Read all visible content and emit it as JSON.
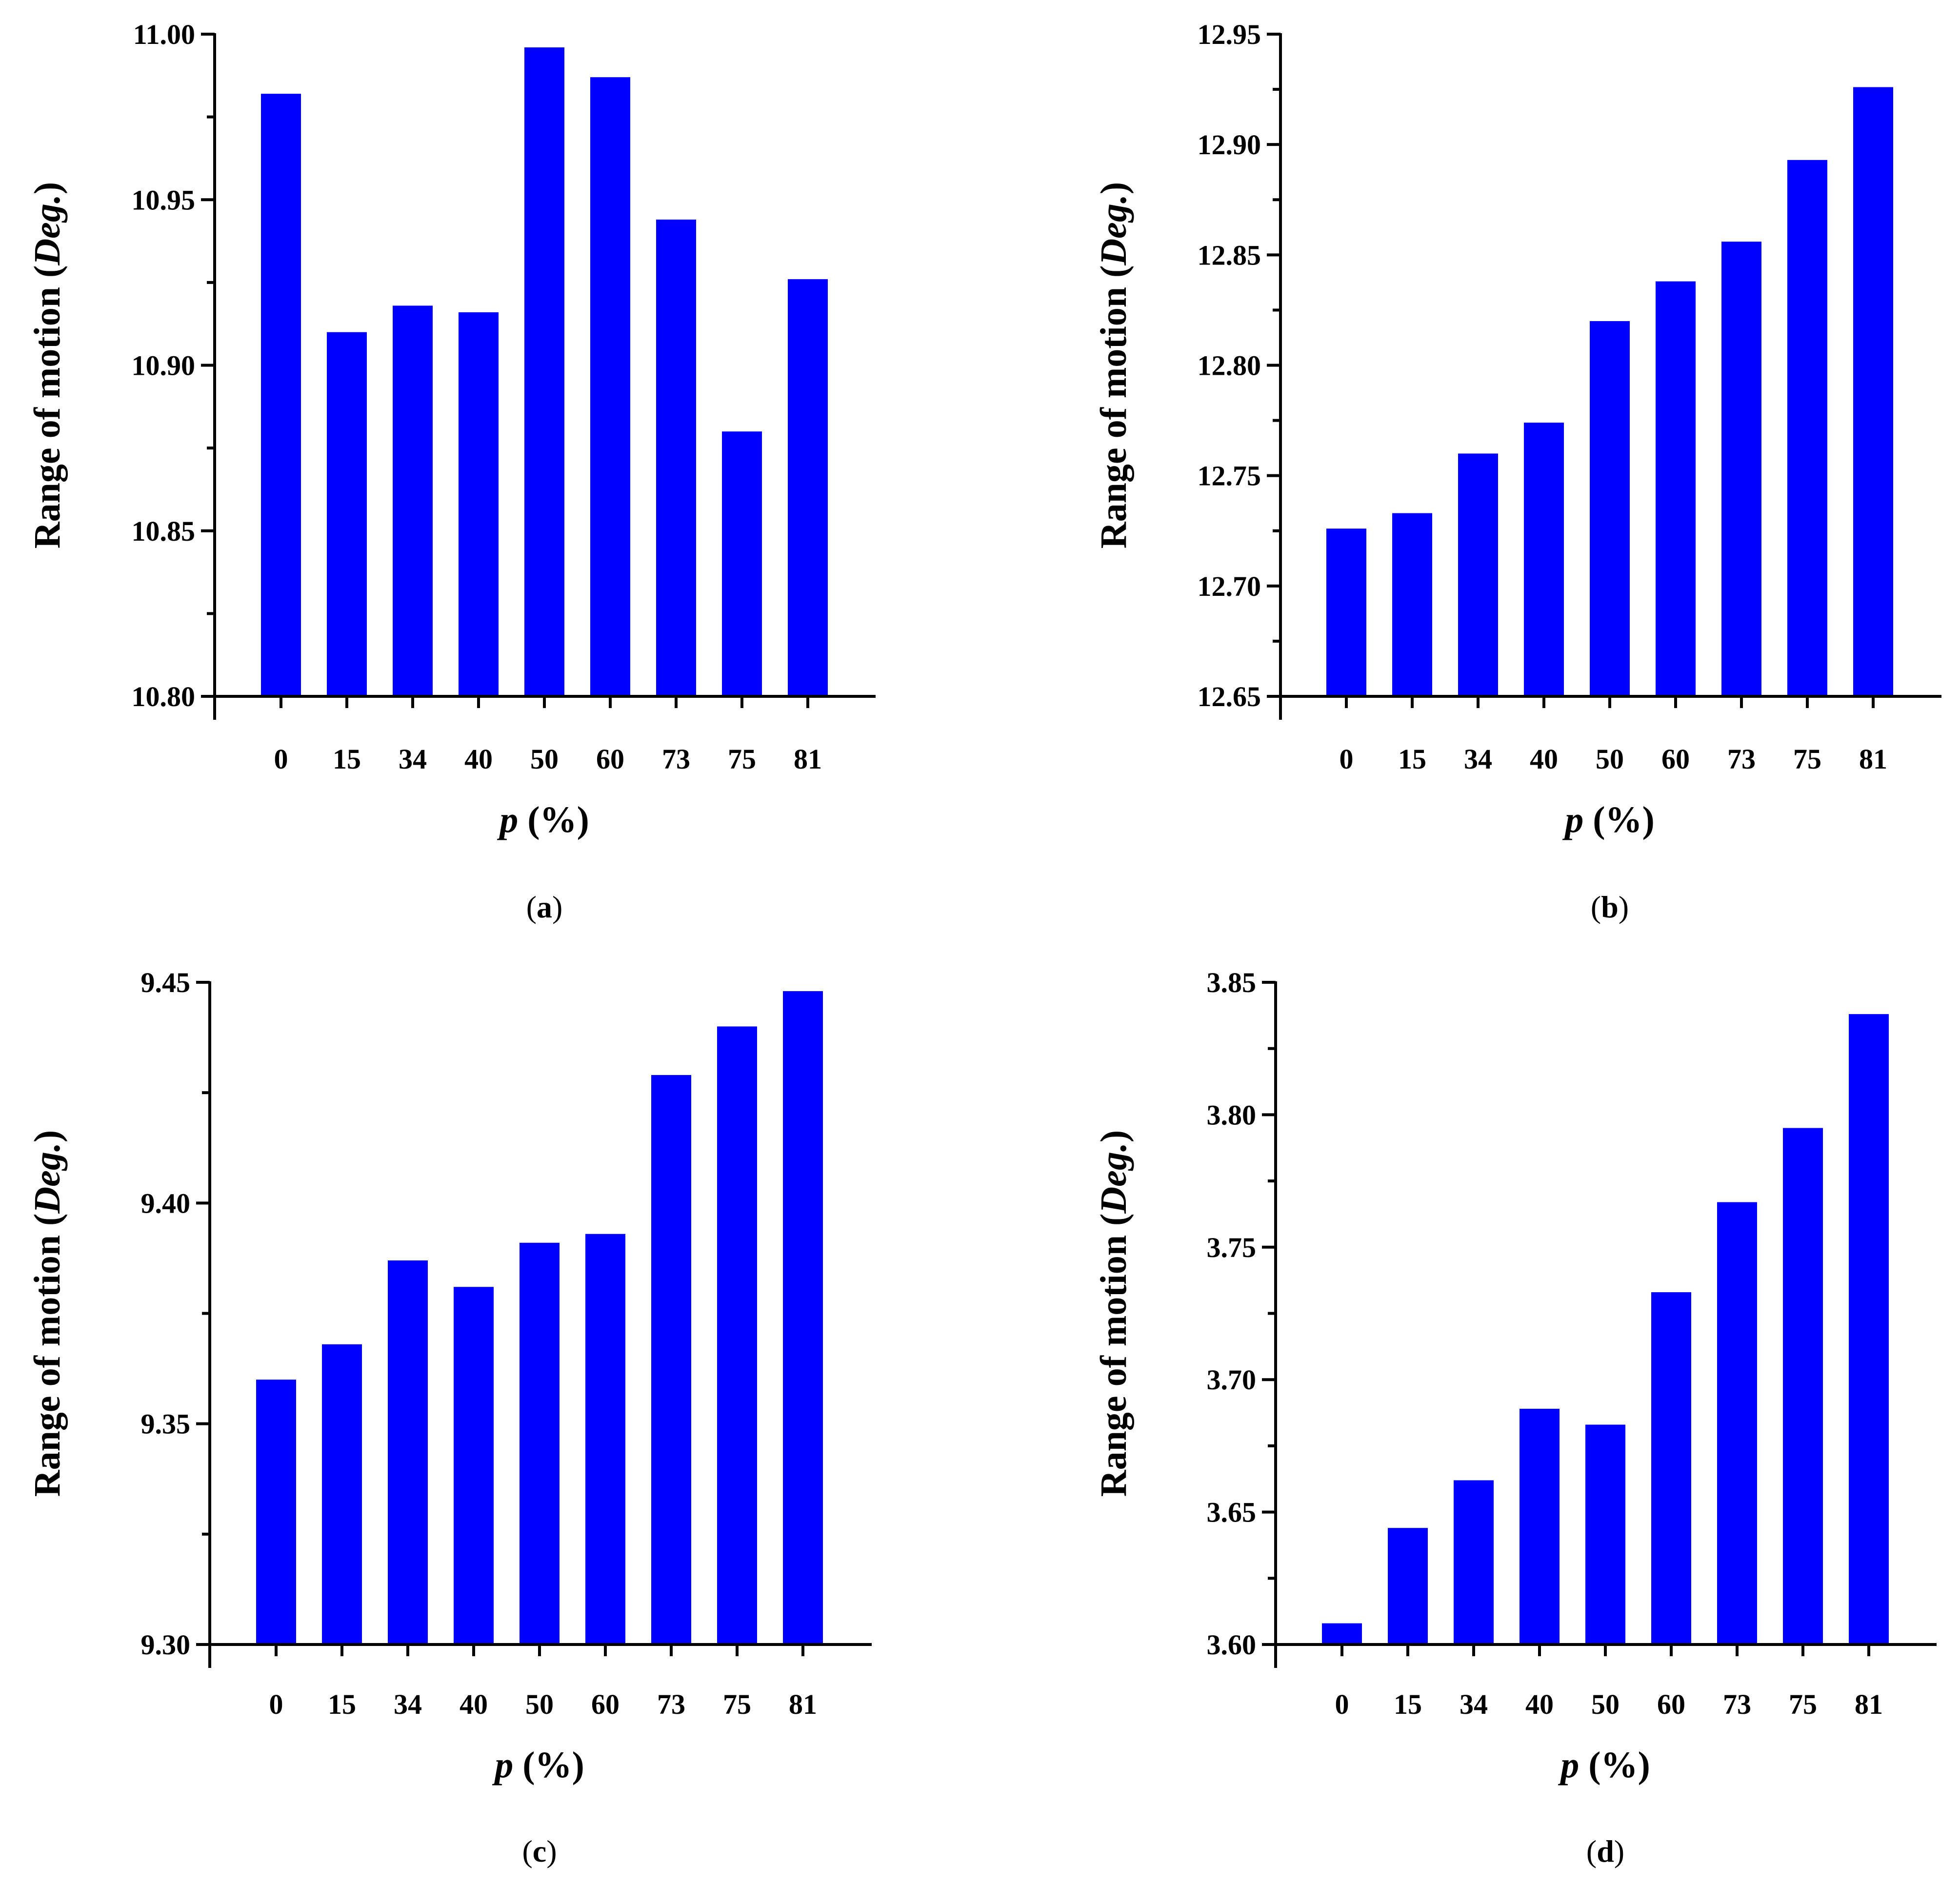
{
  "chart_data": [
    {
      "type": "bar",
      "panel": "(a)",
      "categories": [
        "0",
        "15",
        "34",
        "40",
        "50",
        "60",
        "73",
        "75",
        "81"
      ],
      "values": [
        10.982,
        10.91,
        10.918,
        10.916,
        10.996,
        10.987,
        10.944,
        10.88,
        10.926
      ],
      "ylim": [
        10.8,
        11.0
      ],
      "yticks": [
        "10.80",
        "10.85",
        "10.90",
        "10.95",
        "11.00"
      ],
      "ylabel_main": "Range of motion (",
      "ylabel_italic": "Deg.",
      "ylabel_end": ")",
      "xlabel_italic": "p",
      "xlabel_rest": " (%)",
      "caption": "(a)",
      "color": "#0000ff"
    },
    {
      "type": "bar",
      "panel": "(b)",
      "categories": [
        "0",
        "15",
        "34",
        "40",
        "50",
        "60",
        "73",
        "75",
        "81"
      ],
      "values": [
        12.726,
        12.733,
        12.76,
        12.774,
        12.82,
        12.838,
        12.856,
        12.893,
        12.926
      ],
      "ylim": [
        12.65,
        12.95
      ],
      "yticks": [
        "12.65",
        "12.70",
        "12.75",
        "12.80",
        "12.85",
        "12.90",
        "12.95"
      ],
      "ylabel_main": "Range of motion (",
      "ylabel_italic": "Deg.",
      "ylabel_end": ")",
      "xlabel_italic": "p",
      "xlabel_rest": " (%)",
      "caption": "(b)",
      "color": "#0000ff"
    },
    {
      "type": "bar",
      "panel": "(c)",
      "categories": [
        "0",
        "15",
        "34",
        "40",
        "50",
        "60",
        "73",
        "75",
        "81"
      ],
      "values": [
        9.36,
        9.368,
        9.387,
        9.381,
        9.391,
        9.393,
        9.429,
        9.44,
        9.448
      ],
      "ylim": [
        9.3,
        9.45
      ],
      "yticks": [
        "9.30",
        "9.35",
        "9.40",
        "9.45"
      ],
      "ylabel_main": "Range of motion (",
      "ylabel_italic": "Deg.",
      "ylabel_end": ")",
      "xlabel_italic": "p",
      "xlabel_rest": " (%)",
      "caption": "(c)",
      "color": "#0000ff"
    },
    {
      "type": "bar",
      "panel": "(d)",
      "categories": [
        "0",
        "15",
        "34",
        "40",
        "50",
        "60",
        "73",
        "75",
        "81"
      ],
      "values": [
        3.608,
        3.644,
        3.662,
        3.689,
        3.683,
        3.733,
        3.767,
        3.795,
        3.838
      ],
      "ylim": [
        3.6,
        3.85
      ],
      "yticks": [
        "3.60",
        "3.65",
        "3.70",
        "3.75",
        "3.80",
        "3.85"
      ],
      "ylabel_main": "Range of motion (",
      "ylabel_italic": "Deg.",
      "ylabel_end": ")",
      "xlabel_italic": "p",
      "xlabel_rest": " (%)",
      "caption": "(d)",
      "color": "#0000ff"
    }
  ]
}
